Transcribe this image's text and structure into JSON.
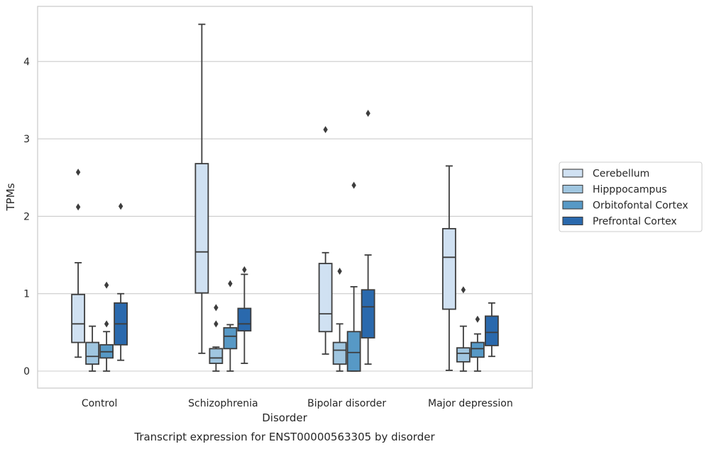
{
  "chart_data": {
    "type": "box",
    "title": "",
    "caption": "Transcript expression for ENST00000563305 by disorder",
    "xlabel": "Disorder",
    "ylabel": "TPMs",
    "ylim": [
      -0.22,
      4.7
    ],
    "yticks": [
      0,
      1,
      2,
      3,
      4
    ],
    "grid": "horizontal",
    "legend_position": "right",
    "categories": [
      "Control",
      "Schizophrenia",
      "Bipolar disorder",
      "Major depression"
    ],
    "series": [
      {
        "name": "Cerebellum",
        "color": "#d0e1f2",
        "boxes": [
          {
            "whislo": 0.18,
            "q1": 0.37,
            "med": 0.61,
            "q3": 0.99,
            "whishi": 1.4,
            "fliers": [
              2.12,
              2.57
            ]
          },
          {
            "whislo": 0.23,
            "q1": 1.01,
            "med": 1.54,
            "q3": 2.68,
            "whishi": 4.48,
            "fliers": []
          },
          {
            "whislo": 0.22,
            "q1": 0.51,
            "med": 0.74,
            "q3": 1.39,
            "whishi": 1.53,
            "fliers": [
              3.12
            ]
          },
          {
            "whislo": 0.01,
            "q1": 0.8,
            "med": 1.47,
            "q3": 1.84,
            "whishi": 2.65,
            "fliers": []
          }
        ]
      },
      {
        "name": "Hipppocampus",
        "color": "#a0c6e0",
        "boxes": [
          {
            "whislo": 0.0,
            "q1": 0.09,
            "med": 0.19,
            "q3": 0.37,
            "whishi": 0.58,
            "fliers": []
          },
          {
            "whislo": 0.0,
            "q1": 0.1,
            "med": 0.17,
            "q3": 0.29,
            "whishi": 0.31,
            "fliers": [
              0.61,
              0.82
            ]
          },
          {
            "whislo": 0.0,
            "q1": 0.09,
            "med": 0.27,
            "q3": 0.37,
            "whishi": 0.61,
            "fliers": [
              1.29
            ]
          },
          {
            "whislo": 0.0,
            "q1": 0.12,
            "med": 0.23,
            "q3": 0.3,
            "whishi": 0.58,
            "fliers": [
              1.05
            ]
          }
        ]
      },
      {
        "name": "Orbitofontal Cortex",
        "color": "#5799c6",
        "boxes": [
          {
            "whislo": 0.0,
            "q1": 0.17,
            "med": 0.25,
            "q3": 0.34,
            "whishi": 0.51,
            "fliers": [
              0.61,
              1.11
            ]
          },
          {
            "whislo": 0.0,
            "q1": 0.29,
            "med": 0.45,
            "q3": 0.56,
            "whishi": 0.6,
            "fliers": [
              1.13
            ]
          },
          {
            "whislo": 0.0,
            "q1": 0.0,
            "med": 0.24,
            "q3": 0.51,
            "whishi": 1.09,
            "fliers": [
              2.4
            ]
          },
          {
            "whislo": 0.0,
            "q1": 0.18,
            "med": 0.29,
            "q3": 0.37,
            "whishi": 0.48,
            "fliers": [
              0.67
            ]
          }
        ]
      },
      {
        "name": "Prefrontal Cortex",
        "color": "#2a69ad",
        "boxes": [
          {
            "whislo": 0.14,
            "q1": 0.34,
            "med": 0.61,
            "q3": 0.88,
            "whishi": 1.0,
            "fliers": [
              2.13
            ]
          },
          {
            "whislo": 0.1,
            "q1": 0.52,
            "med": 0.61,
            "q3": 0.81,
            "whishi": 1.25,
            "fliers": [
              1.31
            ]
          },
          {
            "whislo": 0.09,
            "q1": 0.43,
            "med": 0.83,
            "q3": 1.05,
            "whishi": 1.5,
            "fliers": [
              3.33
            ]
          },
          {
            "whislo": 0.19,
            "q1": 0.33,
            "med": 0.5,
            "q3": 0.71,
            "whishi": 0.88,
            "fliers": []
          }
        ]
      }
    ]
  }
}
